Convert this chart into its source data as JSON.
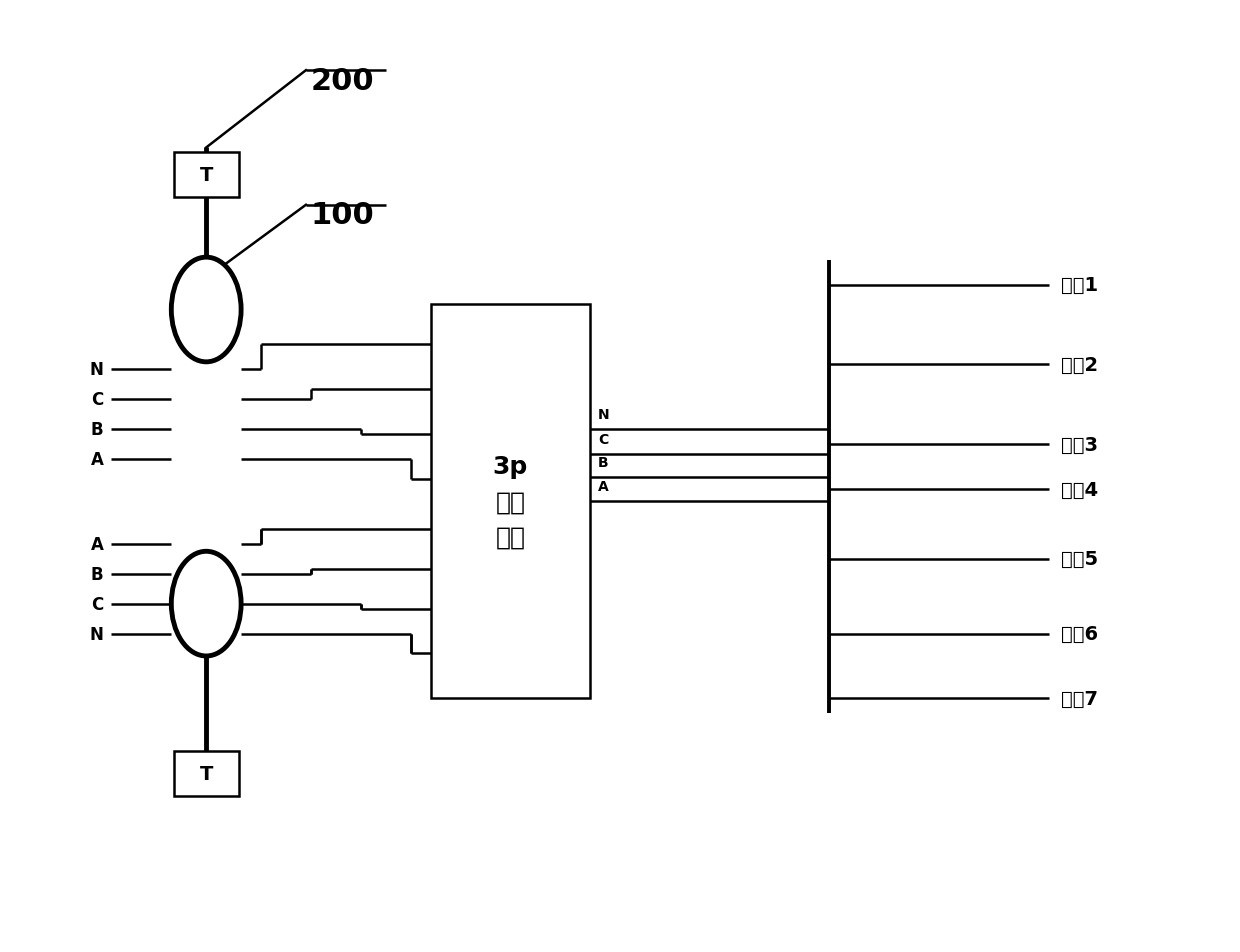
{
  "bg_color": "#ffffff",
  "line_color": "#000000",
  "lw": 1.8,
  "lw_thick": 3.5,
  "fig_width": 12.4,
  "fig_height": 9.53,
  "label_200": "200",
  "label_100": "100",
  "switch_label": "3p\n切换\n开关",
  "load_labels": [
    "负载1",
    "负载2",
    "负载3",
    "负载4",
    "负载5",
    "负载6",
    "负载7"
  ],
  "top_line_labels": [
    "N",
    "C",
    "B",
    "A"
  ],
  "bot_line_labels": [
    "A",
    "B",
    "C",
    "N"
  ],
  "T_label": "T"
}
